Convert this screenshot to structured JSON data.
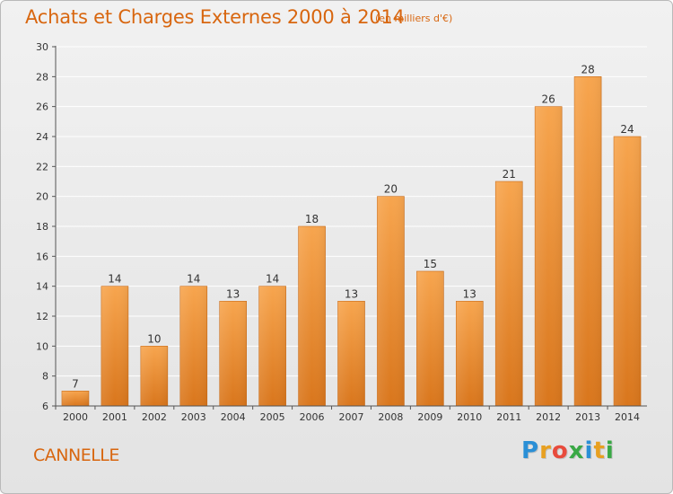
{
  "title": "Achats et Charges Externes 2000 à 2014",
  "subtitle": "(en milliers d'€)",
  "commune": "CANNELLE",
  "logo": {
    "letters": [
      "P",
      "r",
      "o",
      "x",
      "i",
      "t",
      "i"
    ],
    "colors": [
      "#2a8fd6",
      "#e8a020",
      "#e84b3c",
      "#39a845",
      "#2a8fd6",
      "#e8a020",
      "#39a845"
    ]
  },
  "colors": {
    "bar_top": "#f7a54e",
    "bar_bottom": "#d9761c",
    "text_accent": "#d8660f",
    "axis": "#555555"
  },
  "chart_data": {
    "type": "bar",
    "categories": [
      "2000",
      "2001",
      "2002",
      "2003",
      "2004",
      "2005",
      "2006",
      "2007",
      "2008",
      "2009",
      "2010",
      "2011",
      "2012",
      "2013",
      "2014"
    ],
    "values": [
      7,
      14,
      10,
      14,
      13,
      14,
      18,
      13,
      20,
      15,
      13,
      21,
      26,
      28,
      24
    ],
    "value_labels": [
      "7",
      "14",
      "10",
      "14",
      "13",
      "14",
      "18",
      "13",
      "20",
      "15",
      "13",
      "21",
      "26",
      "28",
      "24"
    ],
    "yticks": [
      "6",
      "8",
      "10",
      "12",
      "14",
      "16",
      "18",
      "20",
      "22",
      "24",
      "26",
      "28",
      "30"
    ],
    "ylim": [
      6,
      30
    ],
    "grid": true,
    "xlabel": "",
    "ylabel": ""
  }
}
